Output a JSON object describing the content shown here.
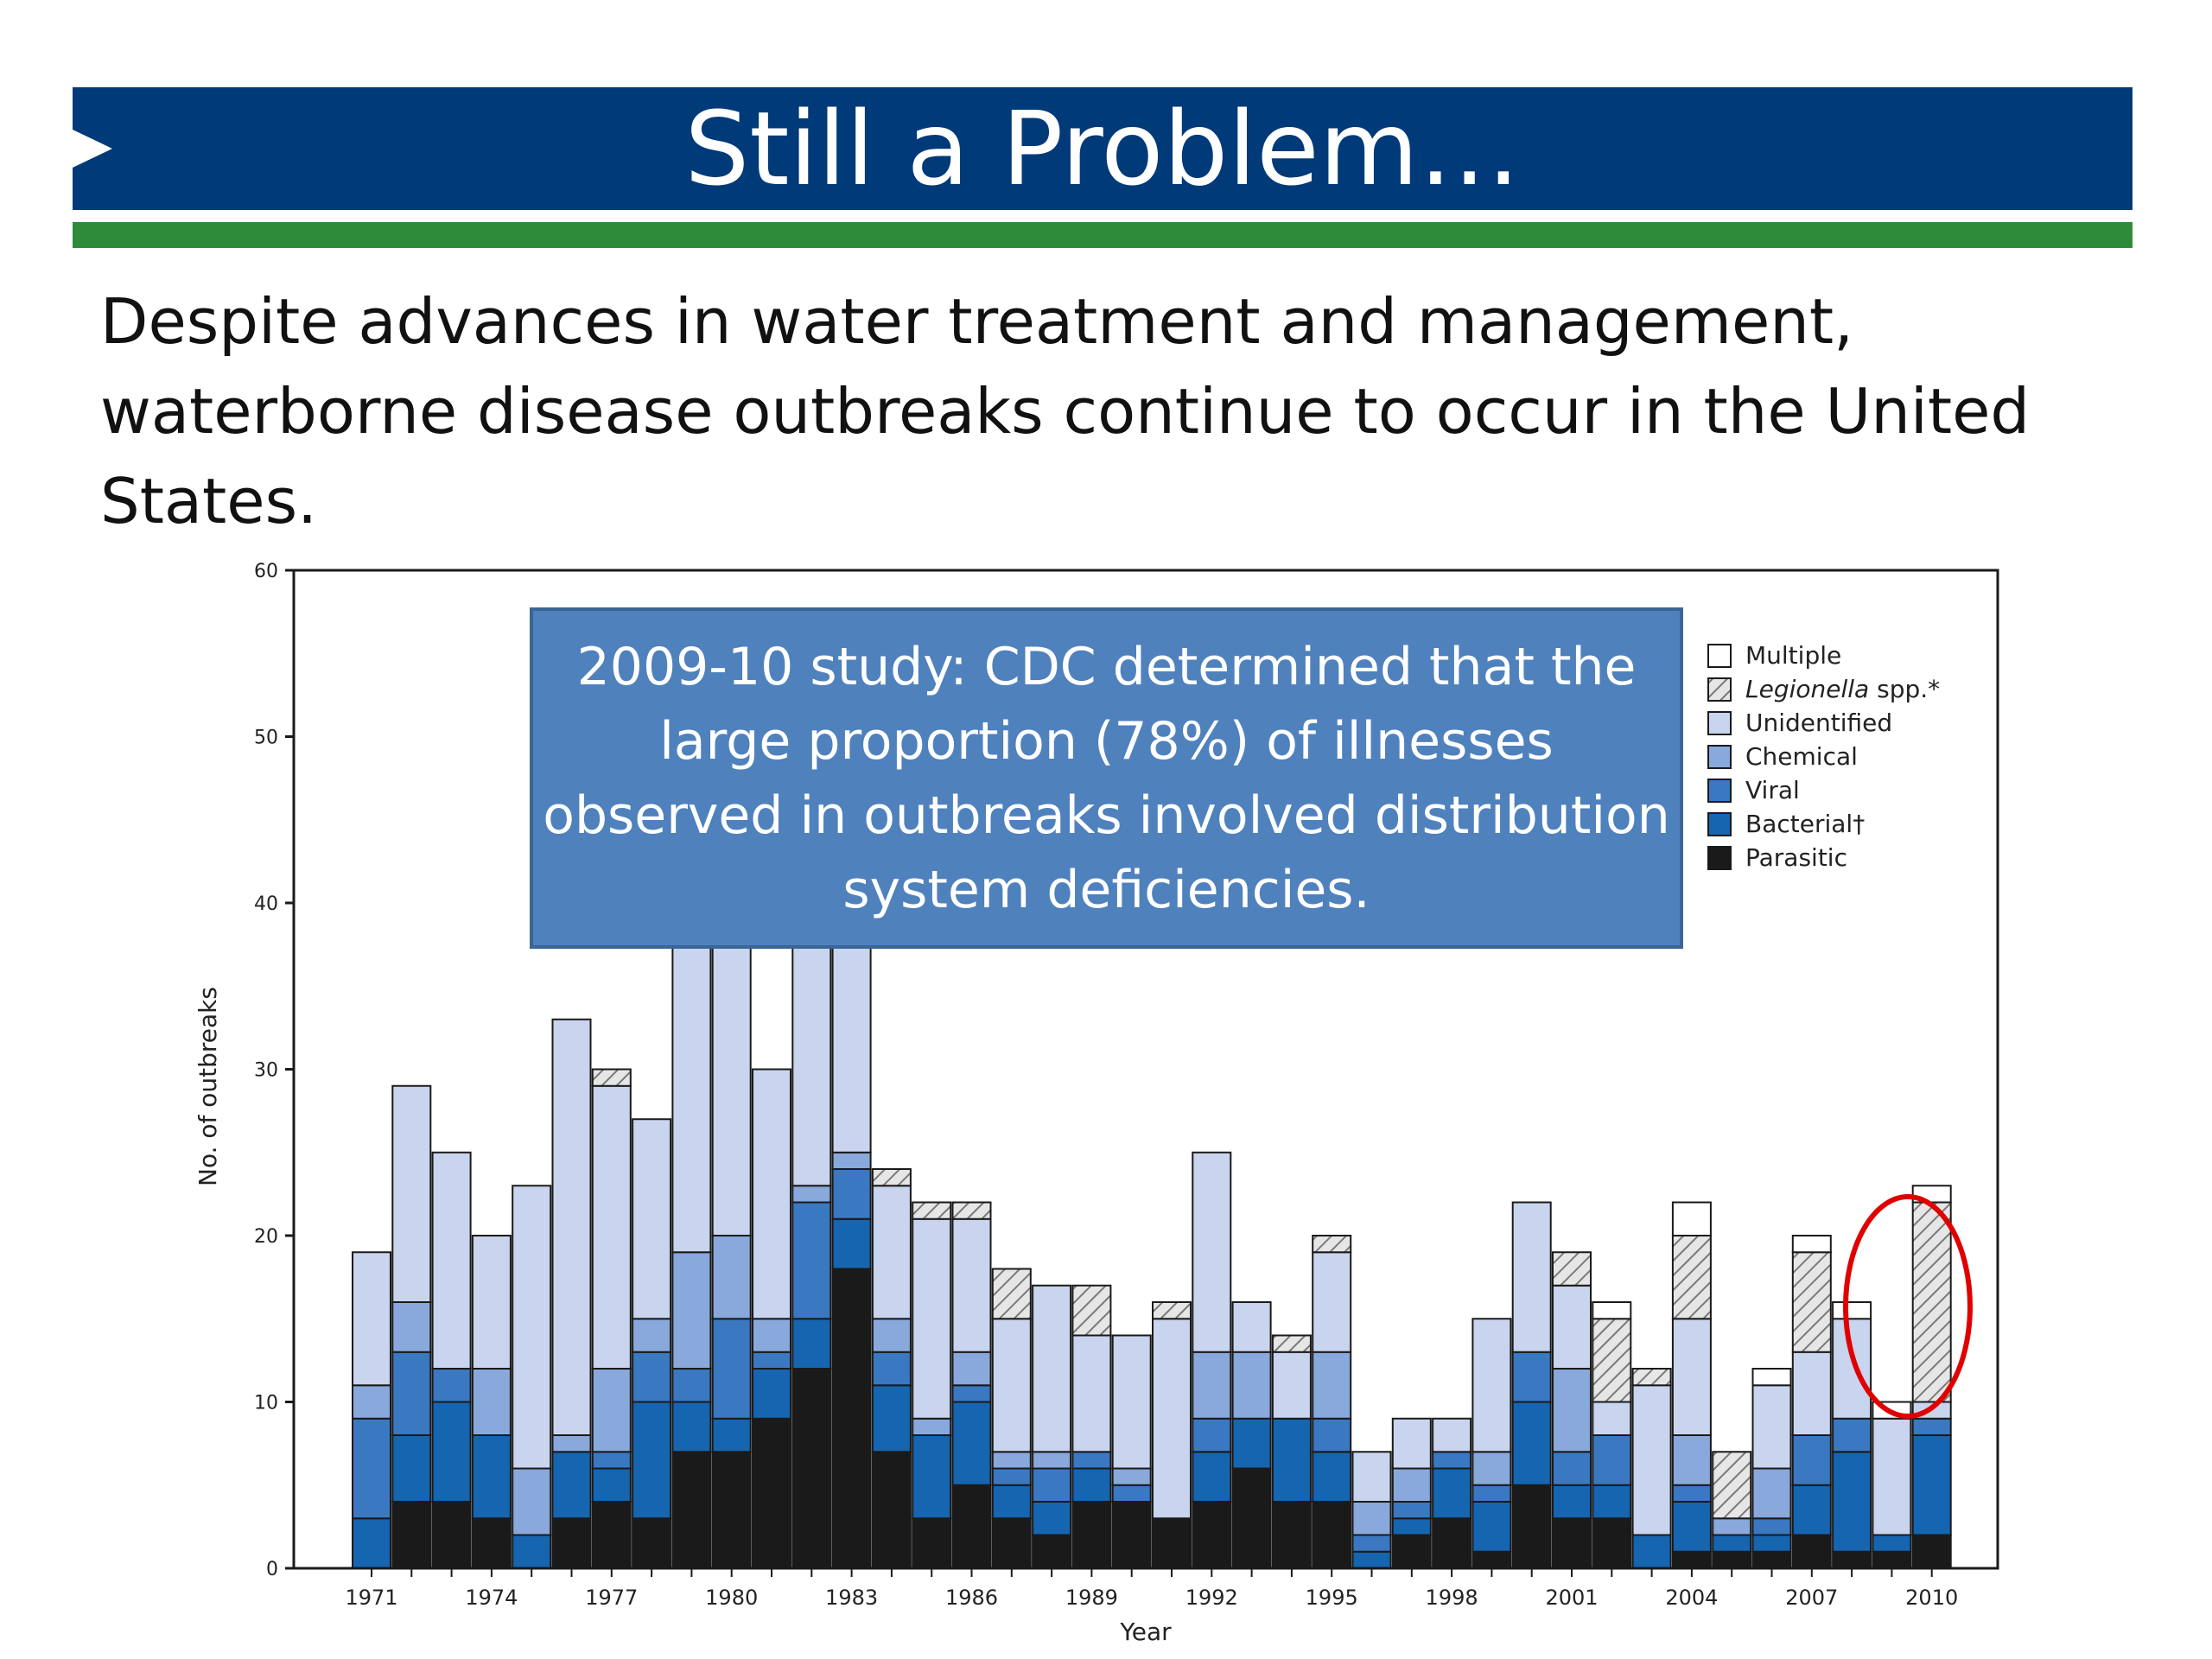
{
  "slide": {
    "title": "Still a Problem…",
    "body": "Despite advances in water treatment and management, waterborne disease outbreaks continue to occur in the United States."
  },
  "callout": {
    "text": "2009-10 study: CDC determined that the large proportion (78%) of illnesses observed in outbreaks involved distribution system deficiencies."
  },
  "colors": {
    "title_bar": "#003a78",
    "accent_green": "#2e8b3a",
    "callout_fill": "#4f81bd",
    "highlight_circle": "#e00000"
  },
  "chart_data": {
    "type": "bar",
    "stacked": true,
    "xlabel": "Year",
    "ylabel": "No. of outbreaks",
    "ylim": [
      0,
      60
    ],
    "yticks": [
      "0",
      "10",
      "20",
      "30",
      "40",
      "50",
      "60"
    ],
    "x_tick_labels": [
      "1971",
      "1974",
      "1977",
      "1980",
      "1983",
      "1986",
      "1989",
      "1992",
      "1995",
      "1998",
      "2001",
      "2004",
      "2007",
      "2010"
    ],
    "categories": [
      "1971",
      "1972",
      "1973",
      "1974",
      "1975",
      "1976",
      "1977",
      "1978",
      "1979",
      "1980",
      "1981",
      "1982",
      "1983",
      "1984",
      "1985",
      "1986",
      "1987",
      "1988",
      "1989",
      "1990",
      "1991",
      "1992",
      "1993",
      "1994",
      "1995",
      "1996",
      "1997",
      "1998",
      "1999",
      "2000",
      "2001",
      "2002",
      "2003",
      "2004",
      "2005",
      "2006",
      "2007",
      "2008",
      "2009",
      "2010"
    ],
    "series": [
      {
        "name": "Parasitic",
        "color": "#1a1a1a",
        "values": [
          0,
          4,
          4,
          3,
          0,
          3,
          4,
          3,
          7,
          7,
          9,
          12,
          18,
          7,
          3,
          5,
          3,
          2,
          4,
          4,
          3,
          4,
          6,
          4,
          4,
          0,
          2,
          3,
          1,
          5,
          3,
          3,
          0,
          1,
          1,
          1,
          2,
          1,
          1,
          2
        ]
      },
      {
        "name": "Bacterial†",
        "color": "#1565b0",
        "values": [
          3,
          4,
          6,
          5,
          2,
          4,
          2,
          7,
          3,
          2,
          3,
          3,
          3,
          4,
          5,
          5,
          2,
          2,
          2,
          0,
          0,
          3,
          3,
          5,
          3,
          1,
          1,
          3,
          3,
          5,
          2,
          2,
          2,
          3,
          1,
          1,
          3,
          6,
          1,
          6
        ]
      },
      {
        "name": "Viral",
        "color": "#3a78c2",
        "values": [
          6,
          5,
          2,
          0,
          0,
          0,
          1,
          3,
          2,
          6,
          1,
          7,
          3,
          2,
          0,
          1,
          1,
          2,
          1,
          1,
          0,
          2,
          0,
          0,
          2,
          1,
          1,
          1,
          1,
          3,
          2,
          3,
          0,
          1,
          0,
          1,
          3,
          2,
          0,
          1
        ]
      },
      {
        "name": "Chemical",
        "color": "#89a8dc",
        "values": [
          2,
          3,
          0,
          4,
          4,
          1,
          5,
          2,
          7,
          5,
          2,
          1,
          1,
          2,
          1,
          2,
          1,
          1,
          0,
          1,
          0,
          4,
          4,
          0,
          4,
          2,
          2,
          0,
          2,
          0,
          5,
          0,
          0,
          3,
          1,
          3,
          0,
          0,
          0,
          0
        ]
      },
      {
        "name": "Unidentified",
        "color": "#c9d4ee",
        "values": [
          8,
          13,
          13,
          8,
          17,
          25,
          17,
          12,
          19,
          24,
          15,
          24,
          21,
          8,
          12,
          8,
          8,
          10,
          7,
          8,
          12,
          12,
          3,
          4,
          6,
          3,
          3,
          2,
          8,
          9,
          5,
          2,
          9,
          7,
          0,
          5,
          5,
          6,
          7,
          1
        ]
      },
      {
        "name": "Legionella spp.*",
        "color": "hatch",
        "values": [
          0,
          0,
          0,
          0,
          0,
          0,
          1,
          0,
          0,
          0,
          0,
          0,
          0,
          1,
          1,
          1,
          3,
          0,
          3,
          0,
          1,
          0,
          0,
          1,
          1,
          0,
          0,
          0,
          0,
          0,
          2,
          5,
          1,
          5,
          4,
          0,
          6,
          0,
          0,
          12
        ]
      },
      {
        "name": "Multiple",
        "color": "#ffffff",
        "values": [
          0,
          0,
          0,
          0,
          0,
          0,
          0,
          0,
          0,
          0,
          0,
          0,
          0,
          0,
          0,
          0,
          0,
          0,
          0,
          0,
          0,
          0,
          0,
          0,
          0,
          0,
          0,
          0,
          0,
          0,
          0,
          1,
          0,
          2,
          0,
          1,
          1,
          1,
          1,
          1
        ]
      }
    ],
    "legend": {
      "placement": "top-right"
    },
    "annotation": {
      "type": "ellipse",
      "color": "#e00000",
      "target": "2010"
    }
  }
}
